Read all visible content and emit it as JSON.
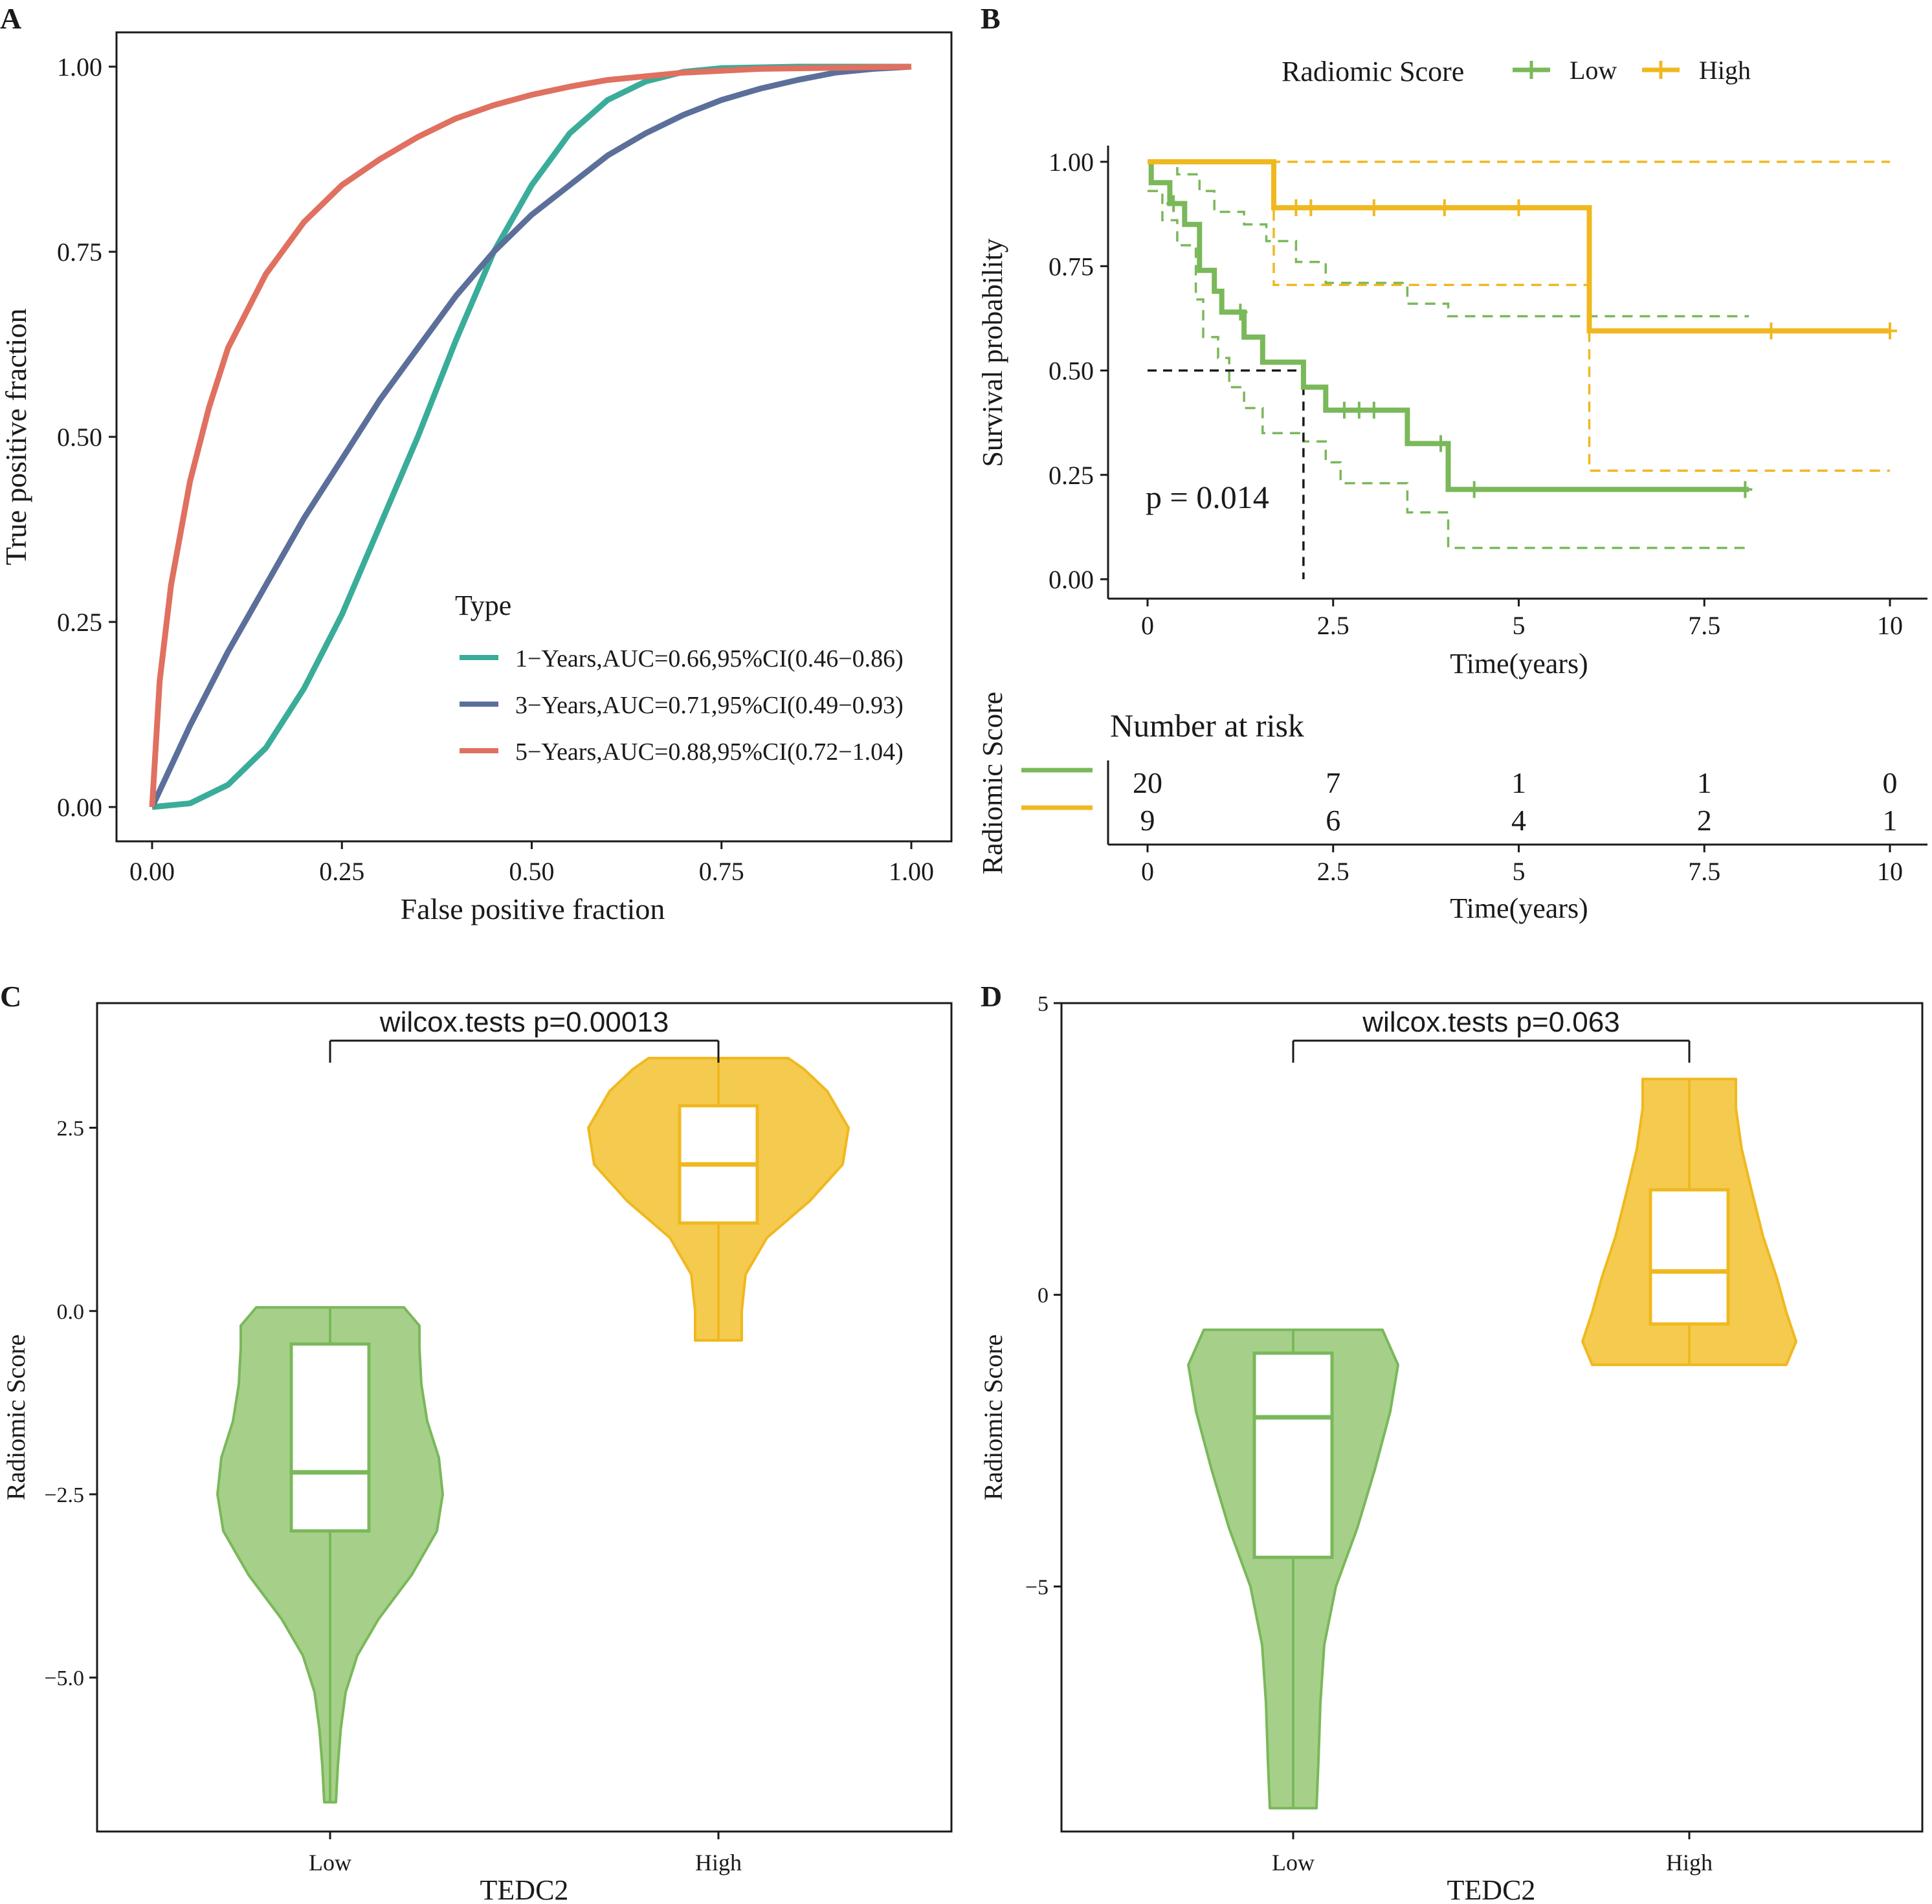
{
  "colors": {
    "teal": "#3aac9a",
    "slate": "#5b6f9a",
    "coral": "#e07060",
    "green": "#7ab85a",
    "green_fill": "#a6d08a",
    "gold": "#f0b820",
    "gold_fill": "#f4cb4e",
    "axis": "#1a1a1a"
  },
  "chart_data": [
    {
      "panel_letter": "A",
      "type": "line",
      "xlabel": "False positive fraction",
      "ylabel": "True positive fraction",
      "xlim": [
        0,
        1
      ],
      "ylim": [
        0,
        1
      ],
      "x_ticks": [
        "0.00",
        "0.25",
        "0.50",
        "0.75",
        "1.00"
      ],
      "y_ticks": [
        "0.00",
        "0.25",
        "0.50",
        "0.75",
        "1.00"
      ],
      "legend_title": "Type",
      "legend_position": "bottom-right",
      "grid": false,
      "series": [
        {
          "name": "1−Years,AUC=0.66,95%CI(0.46−0.86)",
          "color_key": "teal",
          "points": [
            [
              0,
              0
            ],
            [
              0.05,
              0.005
            ],
            [
              0.1,
              0.03
            ],
            [
              0.15,
              0.08
            ],
            [
              0.2,
              0.16
            ],
            [
              0.25,
              0.26
            ],
            [
              0.3,
              0.38
            ],
            [
              0.35,
              0.5
            ],
            [
              0.4,
              0.63
            ],
            [
              0.45,
              0.75
            ],
            [
              0.5,
              0.84
            ],
            [
              0.55,
              0.91
            ],
            [
              0.6,
              0.955
            ],
            [
              0.65,
              0.98
            ],
            [
              0.7,
              0.993
            ],
            [
              0.75,
              0.998
            ],
            [
              0.85,
              1.0
            ],
            [
              1,
              1
            ]
          ]
        },
        {
          "name": "3−Years,AUC=0.71,95%CI(0.49−0.93)",
          "color_key": "slate",
          "points": [
            [
              0,
              0
            ],
            [
              0.05,
              0.11
            ],
            [
              0.1,
              0.21
            ],
            [
              0.15,
              0.3
            ],
            [
              0.2,
              0.39
            ],
            [
              0.25,
              0.47
            ],
            [
              0.3,
              0.55
            ],
            [
              0.35,
              0.62
            ],
            [
              0.4,
              0.69
            ],
            [
              0.45,
              0.75
            ],
            [
              0.5,
              0.8
            ],
            [
              0.55,
              0.84
            ],
            [
              0.6,
              0.88
            ],
            [
              0.65,
              0.91
            ],
            [
              0.7,
              0.935
            ],
            [
              0.75,
              0.955
            ],
            [
              0.8,
              0.97
            ],
            [
              0.85,
              0.982
            ],
            [
              0.9,
              0.992
            ],
            [
              0.95,
              0.997
            ],
            [
              1,
              1
            ]
          ]
        },
        {
          "name": "5−Years,AUC=0.88,95%CI(0.72−1.04)",
          "color_key": "coral",
          "points": [
            [
              0,
              0
            ],
            [
              0.01,
              0.17
            ],
            [
              0.025,
              0.3
            ],
            [
              0.05,
              0.44
            ],
            [
              0.075,
              0.54
            ],
            [
              0.1,
              0.62
            ],
            [
              0.15,
              0.72
            ],
            [
              0.2,
              0.79
            ],
            [
              0.25,
              0.84
            ],
            [
              0.3,
              0.875
            ],
            [
              0.35,
              0.905
            ],
            [
              0.4,
              0.93
            ],
            [
              0.45,
              0.948
            ],
            [
              0.5,
              0.962
            ],
            [
              0.55,
              0.973
            ],
            [
              0.6,
              0.982
            ],
            [
              0.7,
              0.992
            ],
            [
              0.8,
              0.997
            ],
            [
              1,
              1
            ]
          ]
        }
      ]
    },
    {
      "panel_letter": "B",
      "type": "line",
      "subtype": "kaplan-meier",
      "xlabel": "Time(years)",
      "ylabel": "Survival probability",
      "xlim": [
        0,
        10
      ],
      "ylim": [
        0,
        1
      ],
      "x_ticks": [
        "0",
        "2.5",
        "5",
        "7.5",
        "10"
      ],
      "x_tick_values": [
        0,
        2.5,
        5,
        7.5,
        10
      ],
      "y_ticks": [
        "0.00",
        "0.25",
        "0.50",
        "0.75",
        "1.00"
      ],
      "legend_title": "Radiomic Score",
      "legend_position": "top",
      "pvalue": "p = 0.014",
      "median_survival_low": 2.1,
      "series": [
        {
          "name": "Low",
          "color_key": "green",
          "steps": [
            [
              0,
              1.0
            ],
            [
              0.05,
              0.95
            ],
            [
              0.3,
              0.9
            ],
            [
              0.5,
              0.85
            ],
            [
              0.7,
              0.74
            ],
            [
              0.9,
              0.69
            ],
            [
              1.0,
              0.64
            ],
            [
              1.3,
              0.58
            ],
            [
              1.55,
              0.52
            ],
            [
              2.1,
              0.46
            ],
            [
              2.4,
              0.405
            ],
            [
              3.5,
              0.325
            ],
            [
              4.05,
              0.215
            ],
            [
              8.1,
              0.215
            ]
          ],
          "censor_x": [
            0.35,
            1.25,
            2.65,
            2.85,
            3.05,
            3.95,
            4.4,
            8.05
          ],
          "ci_upper": [
            [
              0,
              1.0
            ],
            [
              0.2,
              1.0
            ],
            [
              0.4,
              0.97
            ],
            [
              0.7,
              0.93
            ],
            [
              0.9,
              0.88
            ],
            [
              1.3,
              0.85
            ],
            [
              1.6,
              0.81
            ],
            [
              2.0,
              0.76
            ],
            [
              2.4,
              0.71
            ],
            [
              3.5,
              0.66
            ],
            [
              4.05,
              0.63
            ],
            [
              8.1,
              0.63
            ]
          ],
          "ci_lower": [
            [
              0,
              0.93
            ],
            [
              0.2,
              0.86
            ],
            [
              0.4,
              0.8
            ],
            [
              0.65,
              0.67
            ],
            [
              0.75,
              0.58
            ],
            [
              0.95,
              0.53
            ],
            [
              1.1,
              0.46
            ],
            [
              1.3,
              0.41
            ],
            [
              1.55,
              0.35
            ],
            [
              2.1,
              0.33
            ],
            [
              2.4,
              0.28
            ],
            [
              2.6,
              0.23
            ],
            [
              3.5,
              0.16
            ],
            [
              4.05,
              0.075
            ],
            [
              8.1,
              0.075
            ]
          ]
        },
        {
          "name": "High",
          "color_key": "gold",
          "steps": [
            [
              0,
              1.0
            ],
            [
              1.7,
              0.89
            ],
            [
              5.95,
              0.595
            ],
            [
              10,
              0.595
            ]
          ],
          "censor_x": [
            2.0,
            2.2,
            3.05,
            4.0,
            5.0,
            8.4,
            10.0
          ],
          "ci_upper": [
            [
              0,
              1.0
            ],
            [
              10,
              1.0
            ]
          ],
          "ci_lower": [
            [
              0,
              1.0
            ],
            [
              1.7,
              0.705
            ],
            [
              5.95,
              0.26
            ],
            [
              10,
              0.26
            ]
          ]
        }
      ],
      "risk_table": {
        "title": "Number at risk",
        "ylabel": "Radiomic Score",
        "xlabel": "Time(years)",
        "times": [
          "0",
          "2.5",
          "5",
          "7.5",
          "10"
        ],
        "rows": [
          {
            "group": "Low",
            "color_key": "green",
            "counts": [
              "20",
              "7",
              "1",
              "1",
              "0"
            ]
          },
          {
            "group": "High",
            "color_key": "gold",
            "counts": [
              "9",
              "6",
              "4",
              "2",
              "1"
            ]
          }
        ]
      }
    },
    {
      "panel_letter": "C",
      "type": "violin",
      "xlabel": "TEDC2",
      "ylabel": "Radiomic Score",
      "categories": [
        "Low",
        "High"
      ],
      "ylim": [
        -7.1,
        4.2
      ],
      "y_ticks": [
        "−5.0",
        "−2.5",
        "0.0",
        "2.5"
      ],
      "y_tick_values": [
        -5,
        -2.5,
        0,
        2.5
      ],
      "test_label": "wilcox.tests p=0.00013",
      "groups": [
        {
          "name": "Low",
          "color_key": "green",
          "fill_key": "green_fill",
          "min": -6.7,
          "q1": -3.0,
          "median": -2.2,
          "q3": -0.45,
          "max": 0.05,
          "profile": [
            [
              -6.7,
              0.03
            ],
            [
              -6.2,
              0.04
            ],
            [
              -5.7,
              0.055
            ],
            [
              -5.2,
              0.08
            ],
            [
              -4.7,
              0.14
            ],
            [
              -4.2,
              0.25
            ],
            [
              -3.6,
              0.42
            ],
            [
              -3.0,
              0.55
            ],
            [
              -2.5,
              0.58
            ],
            [
              -2.0,
              0.56
            ],
            [
              -1.5,
              0.5
            ],
            [
              -1.0,
              0.47
            ],
            [
              -0.5,
              0.46
            ],
            [
              -0.2,
              0.46
            ],
            [
              0.05,
              0.38
            ]
          ]
        },
        {
          "name": "High",
          "color_key": "gold",
          "fill_key": "gold_fill",
          "min": -0.4,
          "q1": 1.2,
          "median": 2.0,
          "q3": 2.8,
          "max": 3.45,
          "profile": [
            [
              -0.4,
              0.12
            ],
            [
              0.0,
              0.12
            ],
            [
              0.5,
              0.14
            ],
            [
              1.0,
              0.25
            ],
            [
              1.5,
              0.47
            ],
            [
              2.0,
              0.64
            ],
            [
              2.5,
              0.67
            ],
            [
              3.0,
              0.56
            ],
            [
              3.3,
              0.44
            ],
            [
              3.45,
              0.36
            ]
          ]
        }
      ]
    },
    {
      "panel_letter": "D",
      "type": "violin",
      "xlabel": "TEDC2",
      "ylabel": "Radiomic Score",
      "categories": [
        "Low",
        "High"
      ],
      "ylim": [
        -9.2,
        5
      ],
      "y_ticks": [
        "−5",
        "0",
        "5"
      ],
      "y_tick_values": [
        -5,
        0,
        5
      ],
      "test_label": "wilcox.tests p=0.063",
      "groups": [
        {
          "name": "Low",
          "color_key": "green",
          "fill_key": "green_fill",
          "min": -8.8,
          "q1": -4.5,
          "median": -2.1,
          "q3": -1.0,
          "max": -0.6,
          "profile": [
            [
              -8.8,
              0.12
            ],
            [
              -8.0,
              0.13
            ],
            [
              -7.0,
              0.14
            ],
            [
              -6.0,
              0.16
            ],
            [
              -5.0,
              0.22
            ],
            [
              -4.0,
              0.33
            ],
            [
              -3.0,
              0.42
            ],
            [
              -2.0,
              0.5
            ],
            [
              -1.2,
              0.54
            ],
            [
              -0.6,
              0.46
            ]
          ]
        },
        {
          "name": "High",
          "color_key": "gold",
          "fill_key": "gold_fill",
          "min": -1.2,
          "q1": -0.5,
          "median": 0.4,
          "q3": 1.8,
          "max": 3.7,
          "profile": [
            [
              -1.2,
              0.5
            ],
            [
              -0.8,
              0.55
            ],
            [
              -0.3,
              0.5
            ],
            [
              0.3,
              0.45
            ],
            [
              1.0,
              0.38
            ],
            [
              1.8,
              0.32
            ],
            [
              2.5,
              0.27
            ],
            [
              3.2,
              0.24
            ],
            [
              3.7,
              0.24
            ]
          ]
        }
      ]
    }
  ]
}
